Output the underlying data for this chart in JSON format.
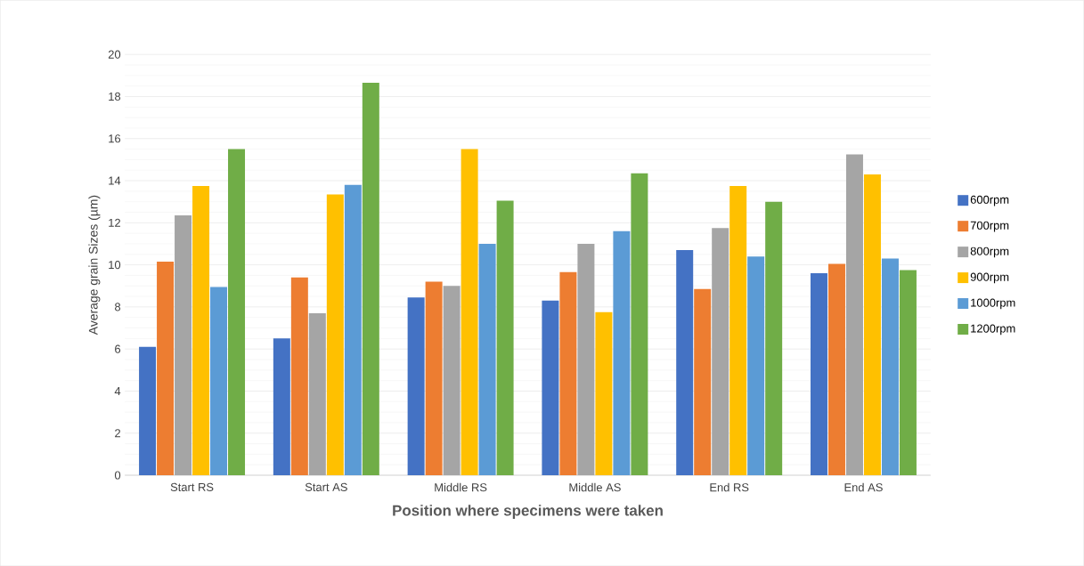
{
  "chart_data": {
    "type": "bar",
    "xlabel": "**Position where specimens were taken**",
    "ylabel": "Average grain Sizes (µm)",
    "categories": [
      "Start RS",
      "Start AS",
      "Middle RS",
      "Middle AS",
      "End RS",
      "End AS"
    ],
    "series": [
      {
        "name": "600rpm",
        "color": "#4472c4",
        "values": [
          6.1,
          6.5,
          8.45,
          8.3,
          10.7,
          9.6
        ]
      },
      {
        "name": "700rpm",
        "color": "#ed7d31",
        "values": [
          10.15,
          9.4,
          9.2,
          9.65,
          8.85,
          10.05
        ]
      },
      {
        "name": "800rpm",
        "color": "#a5a5a5",
        "values": [
          12.35,
          7.7,
          9.0,
          11.0,
          11.75,
          15.25
        ]
      },
      {
        "name": "900rpm",
        "color": "#ffc000",
        "values": [
          13.75,
          13.35,
          15.5,
          7.75,
          13.75,
          14.3
        ]
      },
      {
        "name": "1000rpm",
        "color": "#5b9bd5",
        "values": [
          8.95,
          13.8,
          11.0,
          11.6,
          10.4,
          10.3
        ]
      },
      {
        "name": "1200rpm",
        "color": "#70ad47",
        "values": [
          15.5,
          18.65,
          13.05,
          14.35,
          13.0,
          9.75
        ]
      }
    ],
    "ylim": [
      0,
      20
    ],
    "yticks": [
      0,
      2,
      4,
      6,
      8,
      10,
      12,
      14,
      16,
      18,
      20
    ],
    "grid": "y",
    "legend": "right"
  }
}
